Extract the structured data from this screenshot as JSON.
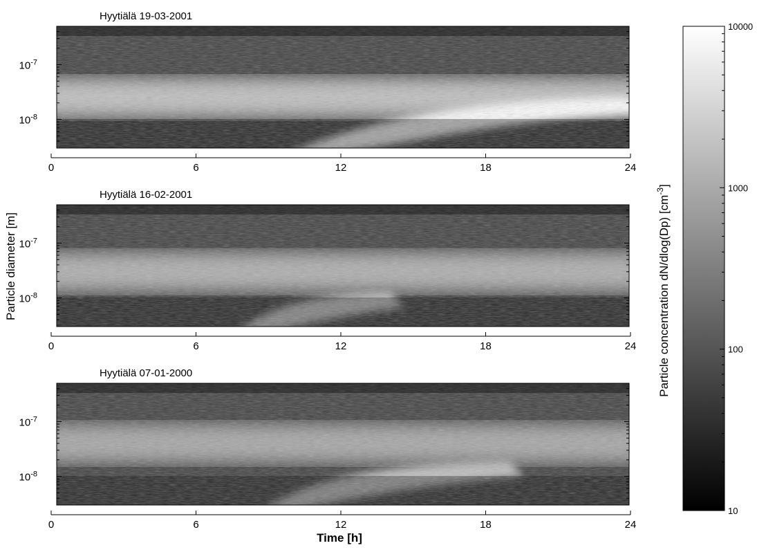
{
  "figure": {
    "ylabel_shared": "Particle diameter [m]",
    "xlabel_shared": "Time [h]",
    "colorbar_label_main": "Particle concentration dN/dlog(Dp) [cm",
    "colorbar_label_unit_sup": "-3",
    "colorbar_label_close": "]"
  },
  "chart_data": [
    {
      "type": "heatmap",
      "title": "Hyytiälä 19-03-2001",
      "x_ticks": [
        "0",
        "6",
        "12",
        "18",
        "24"
      ],
      "xlim": [
        0,
        24
      ],
      "y_scale": "log",
      "ylim_m": [
        3e-09,
        5e-07
      ],
      "y_ticks": [
        {
          "base": "10",
          "exp": "-7",
          "value": 1e-07
        },
        {
          "base": "10",
          "exp": "-8",
          "value": 1e-08
        }
      ],
      "colormap": "gray",
      "features": [
        {
          "t_start": 0,
          "t_end": 24,
          "d_center": 2.5e-08,
          "peak_conc": 2500
        },
        {
          "t_start": 9.5,
          "t_end": 24,
          "d_start": 4e-09,
          "d_end": 2e-08,
          "peak_conc": 10000
        }
      ]
    },
    {
      "type": "heatmap",
      "title": "Hyytiälä 16-02-2001",
      "x_ticks": [
        "0",
        "6",
        "12",
        "18",
        "24"
      ],
      "xlim": [
        0,
        24
      ],
      "y_scale": "log",
      "ylim_m": [
        3e-09,
        5e-07
      ],
      "y_ticks": [
        {
          "base": "10",
          "exp": "-7",
          "value": 1e-07
        },
        {
          "base": "10",
          "exp": "-8",
          "value": 1e-08
        }
      ],
      "colormap": "gray",
      "features": [
        {
          "t_start": 0,
          "t_end": 24,
          "d_center": 3e-08,
          "peak_conc": 1500
        },
        {
          "t_start": 7.5,
          "t_end": 14,
          "d_start": 4e-09,
          "d_end": 1e-08,
          "peak_conc": 2500
        }
      ]
    },
    {
      "type": "heatmap",
      "title": "Hyytiälä 07-01-2000",
      "x_ticks": [
        "0",
        "6",
        "12",
        "18",
        "24"
      ],
      "xlim": [
        0,
        24
      ],
      "y_scale": "log",
      "ylim_m": [
        3e-09,
        5e-07
      ],
      "y_ticks": [
        {
          "base": "10",
          "exp": "-7",
          "value": 1e-07
        },
        {
          "base": "10",
          "exp": "-8",
          "value": 1e-08
        }
      ],
      "colormap": "gray",
      "features": [
        {
          "t_start": 0,
          "t_end": 24,
          "d_center": 4e-08,
          "peak_conc": 1200
        },
        {
          "t_start": 8.5,
          "t_end": 19,
          "d_start": 5e-09,
          "d_end": 1.5e-08,
          "peak_conc": 2000
        }
      ]
    }
  ],
  "colorbar": {
    "scale": "log",
    "range": [
      10,
      10000
    ],
    "ticks": [
      {
        "label": "10000",
        "value": 10000
      },
      {
        "label": "1000",
        "value": 1000
      },
      {
        "label": "100",
        "value": 100
      },
      {
        "label": "10",
        "value": 10
      }
    ]
  }
}
